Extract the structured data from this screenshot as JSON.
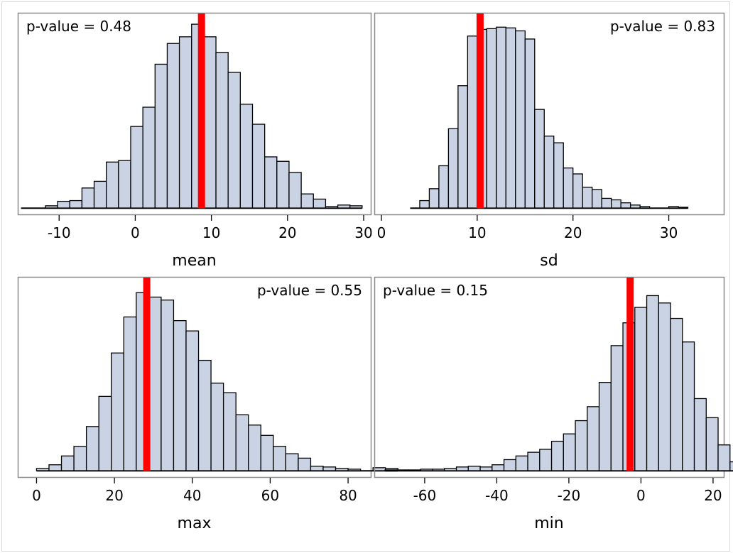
{
  "chart_data": [
    {
      "type": "histogram",
      "xlabel": "mean",
      "annotation": "p-value = 0.48",
      "annotation_position": "top-left",
      "reference_line": 8.7,
      "xlim": [
        -14.5,
        30
      ],
      "ylim": [
        0,
        250
      ],
      "xticks": [
        -10,
        0,
        10,
        20,
        30
      ],
      "tick_labels": [
        "-10",
        "0",
        "10",
        "20",
        "30"
      ],
      "bin_start": -15,
      "bin_width": 1.6,
      "counts": [
        0,
        0,
        3,
        9,
        10,
        27,
        36,
        62,
        64,
        110,
        136,
        194,
        222,
        231,
        248,
        231,
        210,
        183,
        140,
        113,
        69,
        63,
        48,
        19,
        12,
        2,
        4,
        3
      ]
    },
    {
      "type": "histogram",
      "xlabel": "sd",
      "annotation": "p-value = 0.83",
      "annotation_position": "top-right",
      "reference_line": 10.3,
      "xlim": [
        0,
        35
      ],
      "ylim": [
        0,
        250
      ],
      "xticks": [
        0,
        10,
        20,
        30
      ],
      "tick_labels": [
        "0",
        "10",
        "20",
        "30"
      ],
      "bin_start": 3,
      "bin_width": 1,
      "counts": [
        0,
        10,
        26,
        57,
        107,
        165,
        232,
        241,
        242,
        244,
        243,
        239,
        228,
        133,
        97,
        88,
        54,
        46,
        28,
        25,
        13,
        11,
        7,
        4,
        2,
        0,
        0,
        2,
        1
      ]
    },
    {
      "type": "histogram",
      "xlabel": "max",
      "annotation": "p-value = 0.55",
      "annotation_position": "top-right",
      "reference_line": 28.3,
      "xlim": [
        -3,
        84
      ],
      "ylim": [
        0,
        250
      ],
      "xticks": [
        0,
        20,
        40,
        60,
        80
      ],
      "tick_labels": [
        "0",
        "20",
        "40",
        "60",
        "80"
      ],
      "bin_start": 0,
      "bin_width": 3.2,
      "counts": [
        3,
        8,
        20,
        33,
        60,
        101,
        160,
        209,
        242,
        236,
        232,
        204,
        190,
        150,
        119,
        106,
        76,
        62,
        48,
        33,
        23,
        17,
        6,
        5,
        3,
        2,
        0,
        4,
        3
      ]
    },
    {
      "type": "histogram",
      "xlabel": "min",
      "annotation": "p-value = 0.15",
      "annotation_position": "top-left",
      "reference_line": -3,
      "xlim": [
        -72,
        21
      ],
      "ylim": [
        0,
        250
      ],
      "xticks": [
        -60,
        -40,
        -20,
        0,
        20
      ],
      "tick_labels": [
        "-60",
        "-40",
        "-20",
        "0",
        "20"
      ],
      "bin_start": -71,
      "bin_width": 3.3,
      "counts": [
        1,
        1,
        1,
        2,
        2,
        3,
        5,
        6,
        5,
        8,
        15,
        20,
        25,
        29,
        40,
        50,
        68,
        87,
        120,
        170,
        201,
        222,
        238,
        228,
        207,
        175,
        98,
        72,
        35,
        12,
        6
      ]
    }
  ],
  "colors": {
    "bar_fill": "#c9d3e4",
    "bar_stroke": "#000000",
    "reference_line": "#ff0000",
    "frame": "#8a8a8a"
  }
}
